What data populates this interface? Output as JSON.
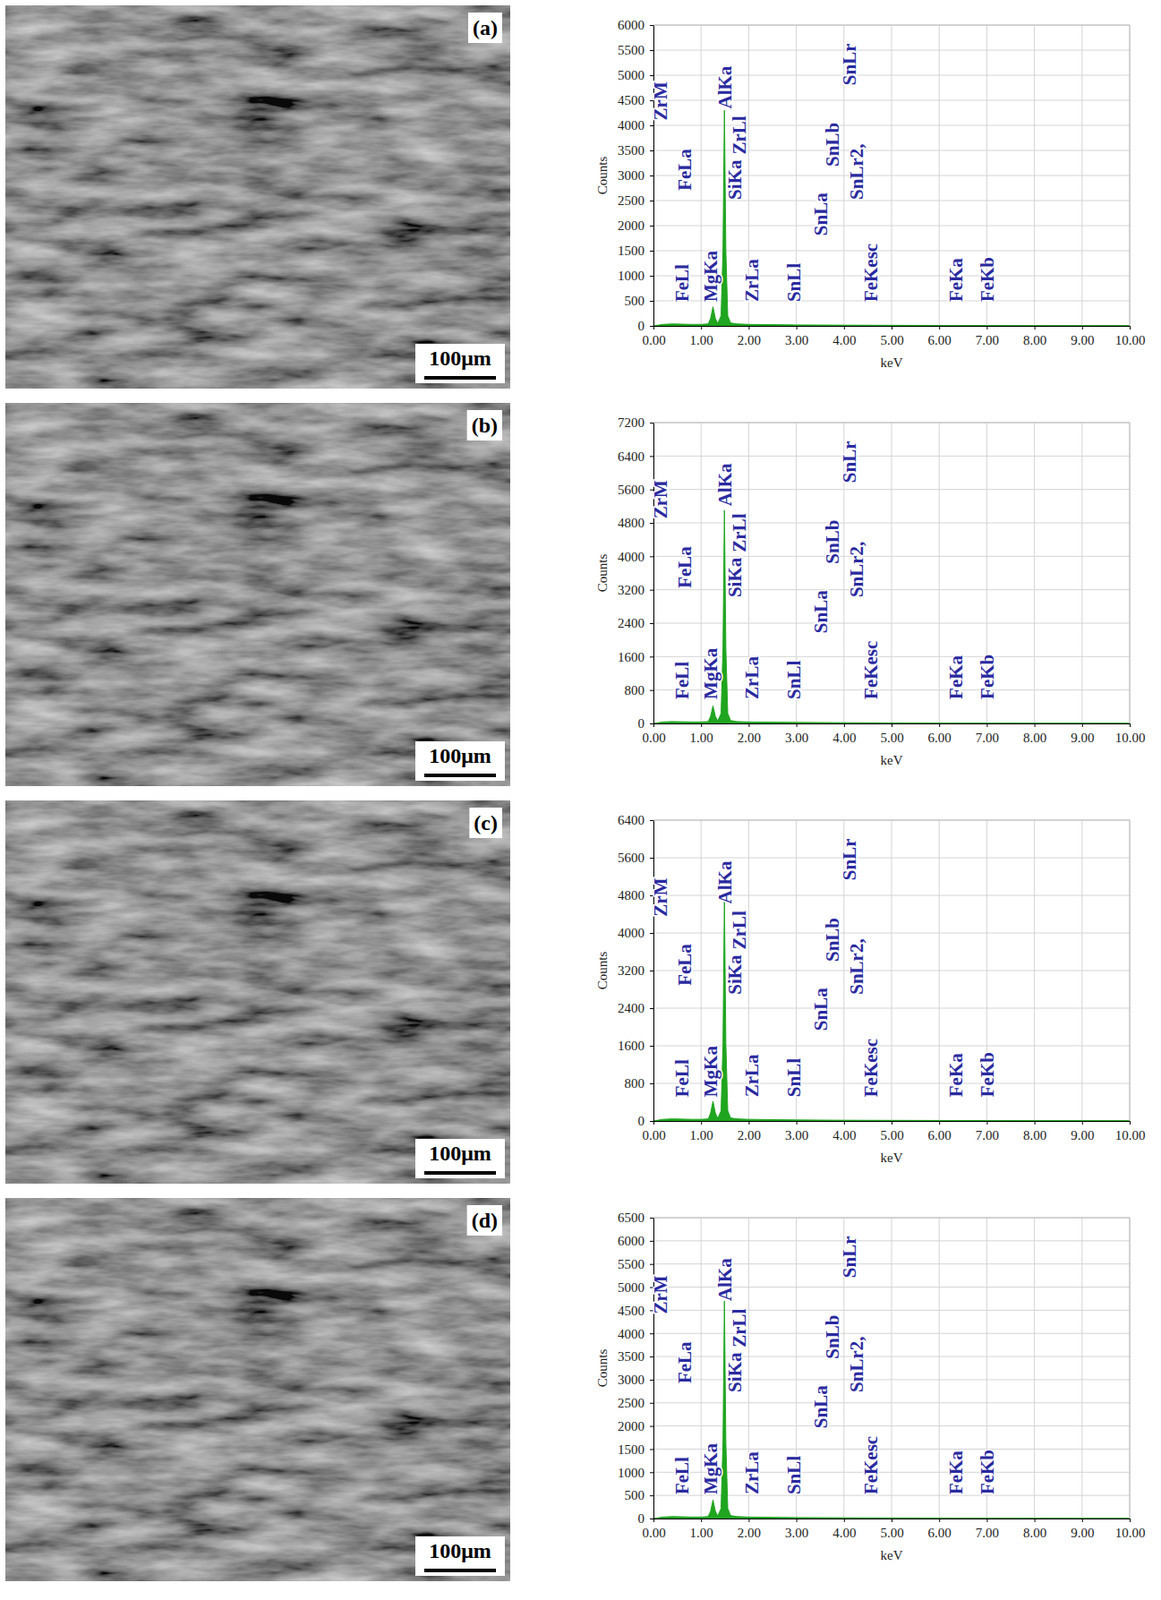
{
  "chart_data": [
    {
      "type": "area",
      "label": "(a)",
      "scale_bar": "100μm",
      "x_label": "keV",
      "y_label": "Counts",
      "grid": true,
      "color": "#1fa51f",
      "x": [
        0,
        0.2,
        0.4,
        0.6,
        0.8,
        1.0,
        1.15,
        1.2,
        1.25,
        1.3,
        1.35,
        1.42,
        1.46,
        1.49,
        1.52,
        1.56,
        1.62,
        1.75,
        2.0,
        2.5,
        3,
        4,
        5,
        6,
        7,
        8,
        9,
        10
      ],
      "values": [
        0,
        30,
        40,
        35,
        30,
        30,
        40,
        150,
        380,
        150,
        50,
        200,
        1500,
        4300,
        1500,
        200,
        60,
        40,
        30,
        25,
        20,
        15,
        12,
        10,
        8,
        6,
        5,
        4
      ],
      "xlim": [
        0,
        10
      ],
      "xticks": [
        {
          "value": 0,
          "label": "0.00"
        },
        {
          "value": 1,
          "label": "1.00"
        },
        {
          "value": 2,
          "label": "2.00"
        },
        {
          "value": 3,
          "label": "3.00"
        },
        {
          "value": 4,
          "label": "4.00"
        },
        {
          "value": 5,
          "label": "5.00"
        },
        {
          "value": 6,
          "label": "6.00"
        },
        {
          "value": 7,
          "label": "7.00"
        },
        {
          "value": 8,
          "label": "8.00"
        },
        {
          "value": 9,
          "label": "9.00"
        },
        {
          "value": 10,
          "label": "10.00"
        }
      ],
      "ylim": [
        0,
        6000
      ],
      "yticks": [
        0,
        500,
        1000,
        1500,
        2000,
        2500,
        3000,
        3500,
        4000,
        4500,
        5000,
        5500,
        6000
      ],
      "annotations": [
        {
          "text": "ZrM",
          "x": 0.2,
          "y": 4100
        },
        {
          "text": "FeLa",
          "x": 0.7,
          "y": 2700
        },
        {
          "text": "FeLl",
          "x": 0.65,
          "y": 480
        },
        {
          "text": "MgKa",
          "x": 1.25,
          "y": 480
        },
        {
          "text": "AlKa",
          "x": 1.55,
          "y": 4330
        },
        {
          "text": "ZrLl",
          "x": 1.85,
          "y": 3420
        },
        {
          "text": "SiKa",
          "x": 1.75,
          "y": 2520
        },
        {
          "text": "ZrLa",
          "x": 2.1,
          "y": 480
        },
        {
          "text": "SnLl",
          "x": 3.0,
          "y": 480
        },
        {
          "text": "SnLa",
          "x": 3.55,
          "y": 1800
        },
        {
          "text": "SnLb",
          "x": 3.8,
          "y": 3180
        },
        {
          "text": "SnLr2,",
          "x": 4.3,
          "y": 2520
        },
        {
          "text": "SnLr",
          "x": 4.15,
          "y": 4800
        },
        {
          "text": "FeKesc",
          "x": 4.6,
          "y": 480
        },
        {
          "text": "FeKa",
          "x": 6.4,
          "y": 480
        },
        {
          "text": "FeKb",
          "x": 7.05,
          "y": 480
        }
      ]
    },
    {
      "type": "area",
      "label": "(b)",
      "scale_bar": "100μm",
      "x_label": "keV",
      "y_label": "Counts",
      "grid": true,
      "color": "#1fa51f",
      "x": [
        0,
        0.2,
        0.4,
        0.6,
        0.8,
        1.0,
        1.15,
        1.2,
        1.25,
        1.3,
        1.35,
        1.42,
        1.46,
        1.49,
        1.52,
        1.56,
        1.62,
        1.75,
        2.0,
        2.5,
        3,
        4,
        5,
        6,
        7,
        8,
        9,
        10
      ],
      "values": [
        0,
        35,
        45,
        40,
        35,
        35,
        45,
        170,
        420,
        170,
        60,
        240,
        1800,
        5100,
        1800,
        240,
        70,
        45,
        35,
        30,
        25,
        18,
        14,
        12,
        10,
        8,
        6,
        5
      ],
      "xlim": [
        0,
        10
      ],
      "xticks": [
        {
          "value": 0,
          "label": "0.00"
        },
        {
          "value": 1,
          "label": "1.00"
        },
        {
          "value": 2,
          "label": "2.00"
        },
        {
          "value": 3,
          "label": "3.00"
        },
        {
          "value": 4,
          "label": "4.00"
        },
        {
          "value": 5,
          "label": "5.00"
        },
        {
          "value": 6,
          "label": "6.00"
        },
        {
          "value": 7,
          "label": "7.00"
        },
        {
          "value": 8,
          "label": "8.00"
        },
        {
          "value": 9,
          "label": "9.00"
        },
        {
          "value": 10,
          "label": "10.00"
        }
      ],
      "ylim": [
        0,
        7200
      ],
      "yticks": [
        0,
        800,
        1600,
        2400,
        3200,
        4000,
        4800,
        5600,
        6400,
        7200
      ],
      "annotations": [
        {
          "text": "ZrM",
          "x": 0.2,
          "y": 4900
        },
        {
          "text": "FeLa",
          "x": 0.7,
          "y": 3240
        },
        {
          "text": "FeLl",
          "x": 0.65,
          "y": 580
        },
        {
          "text": "MgKa",
          "x": 1.25,
          "y": 580
        },
        {
          "text": "AlKa",
          "x": 1.55,
          "y": 5200
        },
        {
          "text": "ZrLl",
          "x": 1.85,
          "y": 4100
        },
        {
          "text": "SiKa",
          "x": 1.75,
          "y": 3020
        },
        {
          "text": "ZrLa",
          "x": 2.1,
          "y": 580
        },
        {
          "text": "SnLl",
          "x": 3.0,
          "y": 580
        },
        {
          "text": "SnLa",
          "x": 3.55,
          "y": 2160
        },
        {
          "text": "SnLb",
          "x": 3.8,
          "y": 3820
        },
        {
          "text": "SnLr2,",
          "x": 4.3,
          "y": 3020
        },
        {
          "text": "SnLr",
          "x": 4.15,
          "y": 5760
        },
        {
          "text": "FeKesc",
          "x": 4.6,
          "y": 580
        },
        {
          "text": "FeKa",
          "x": 6.4,
          "y": 580
        },
        {
          "text": "FeKb",
          "x": 7.05,
          "y": 580
        }
      ]
    },
    {
      "type": "area",
      "label": "(c)",
      "scale_bar": "100μm",
      "x_label": "keV",
      "y_label": "Counts",
      "grid": true,
      "color": "#1fa51f",
      "x": [
        0,
        0.2,
        0.4,
        0.6,
        0.8,
        1.0,
        1.15,
        1.2,
        1.25,
        1.3,
        1.35,
        1.42,
        1.46,
        1.49,
        1.52,
        1.56,
        1.62,
        1.75,
        2.0,
        2.5,
        3,
        4,
        5,
        6,
        7,
        8,
        9,
        10
      ],
      "values": [
        0,
        35,
        45,
        40,
        35,
        35,
        45,
        170,
        420,
        170,
        55,
        220,
        1650,
        4700,
        1650,
        220,
        65,
        45,
        35,
        28,
        22,
        16,
        13,
        11,
        9,
        7,
        6,
        5
      ],
      "xlim": [
        0,
        10
      ],
      "xticks": [
        {
          "value": 0,
          "label": "0.00"
        },
        {
          "value": 1,
          "label": "1.00"
        },
        {
          "value": 2,
          "label": "2.00"
        },
        {
          "value": 3,
          "label": "3.00"
        },
        {
          "value": 4,
          "label": "4.00"
        },
        {
          "value": 5,
          "label": "5.00"
        },
        {
          "value": 6,
          "label": "6.00"
        },
        {
          "value": 7,
          "label": "7.00"
        },
        {
          "value": 8,
          "label": "8.00"
        },
        {
          "value": 9,
          "label": "9.00"
        },
        {
          "value": 10,
          "label": "10.00"
        }
      ],
      "ylim": [
        0,
        6400
      ],
      "yticks": [
        0,
        800,
        1600,
        2400,
        3200,
        4000,
        4800,
        5600,
        6400
      ],
      "annotations": [
        {
          "text": "ZrM",
          "x": 0.2,
          "y": 4350
        },
        {
          "text": "FeLa",
          "x": 0.7,
          "y": 2880
        },
        {
          "text": "FeLl",
          "x": 0.65,
          "y": 510
        },
        {
          "text": "MgKa",
          "x": 1.25,
          "y": 510
        },
        {
          "text": "AlKa",
          "x": 1.55,
          "y": 4620
        },
        {
          "text": "ZrLl",
          "x": 1.85,
          "y": 3650
        },
        {
          "text": "SiKa",
          "x": 1.75,
          "y": 2690
        },
        {
          "text": "ZrLa",
          "x": 2.1,
          "y": 510
        },
        {
          "text": "SnLl",
          "x": 3.0,
          "y": 510
        },
        {
          "text": "SnLa",
          "x": 3.55,
          "y": 1920
        },
        {
          "text": "SnLb",
          "x": 3.8,
          "y": 3390
        },
        {
          "text": "SnLr2,",
          "x": 4.3,
          "y": 2690
        },
        {
          "text": "SnLr",
          "x": 4.15,
          "y": 5120
        },
        {
          "text": "FeKesc",
          "x": 4.6,
          "y": 510
        },
        {
          "text": "FeKa",
          "x": 6.4,
          "y": 510
        },
        {
          "text": "FeKb",
          "x": 7.05,
          "y": 510
        }
      ]
    },
    {
      "type": "area",
      "label": "(d)",
      "scale_bar": "100μm",
      "x_label": "keV",
      "y_label": "Counts",
      "grid": true,
      "color": "#1fa51f",
      "x": [
        0,
        0.2,
        0.4,
        0.6,
        0.8,
        1.0,
        1.15,
        1.2,
        1.25,
        1.3,
        1.35,
        1.42,
        1.46,
        1.49,
        1.52,
        1.56,
        1.62,
        1.75,
        2.0,
        2.5,
        3,
        4,
        5,
        6,
        7,
        8,
        9,
        10
      ],
      "values": [
        0,
        32,
        42,
        38,
        32,
        32,
        42,
        160,
        400,
        160,
        55,
        220,
        1650,
        4700,
        1650,
        220,
        65,
        42,
        32,
        26,
        21,
        16,
        13,
        11,
        9,
        7,
        6,
        5
      ],
      "xlim": [
        0,
        10
      ],
      "xticks": [
        {
          "value": 0,
          "label": "0.00"
        },
        {
          "value": 1,
          "label": "1.00"
        },
        {
          "value": 2,
          "label": "2.00"
        },
        {
          "value": 3,
          "label": "3.00"
        },
        {
          "value": 4,
          "label": "4.00"
        },
        {
          "value": 5,
          "label": "5.00"
        },
        {
          "value": 6,
          "label": "6.00"
        },
        {
          "value": 7,
          "label": "7.00"
        },
        {
          "value": 8,
          "label": "8.00"
        },
        {
          "value": 9,
          "label": "9.00"
        },
        {
          "value": 10,
          "label": "10.00"
        }
      ],
      "ylim": [
        0,
        6500
      ],
      "yticks": [
        0,
        500,
        1000,
        1500,
        2000,
        2500,
        3000,
        3500,
        4000,
        4500,
        5000,
        5500,
        6000,
        6500
      ],
      "annotations": [
        {
          "text": "ZrM",
          "x": 0.2,
          "y": 4420
        },
        {
          "text": "FeLa",
          "x": 0.7,
          "y": 2920
        },
        {
          "text": "FeLl",
          "x": 0.65,
          "y": 520
        },
        {
          "text": "MgKa",
          "x": 1.25,
          "y": 520
        },
        {
          "text": "AlKa",
          "x": 1.55,
          "y": 4700
        },
        {
          "text": "ZrLl",
          "x": 1.85,
          "y": 3700
        },
        {
          "text": "SiKa",
          "x": 1.75,
          "y": 2730
        },
        {
          "text": "ZrLa",
          "x": 2.1,
          "y": 520
        },
        {
          "text": "SnLl",
          "x": 3.0,
          "y": 520
        },
        {
          "text": "SnLa",
          "x": 3.55,
          "y": 1950
        },
        {
          "text": "SnLb",
          "x": 3.8,
          "y": 3450
        },
        {
          "text": "SnLr2,",
          "x": 4.3,
          "y": 2730
        },
        {
          "text": "SnLr",
          "x": 4.15,
          "y": 5200
        },
        {
          "text": "FeKesc",
          "x": 4.6,
          "y": 520
        },
        {
          "text": "FeKa",
          "x": 6.4,
          "y": 520
        },
        {
          "text": "FeKb",
          "x": 7.05,
          "y": 520
        }
      ]
    }
  ]
}
